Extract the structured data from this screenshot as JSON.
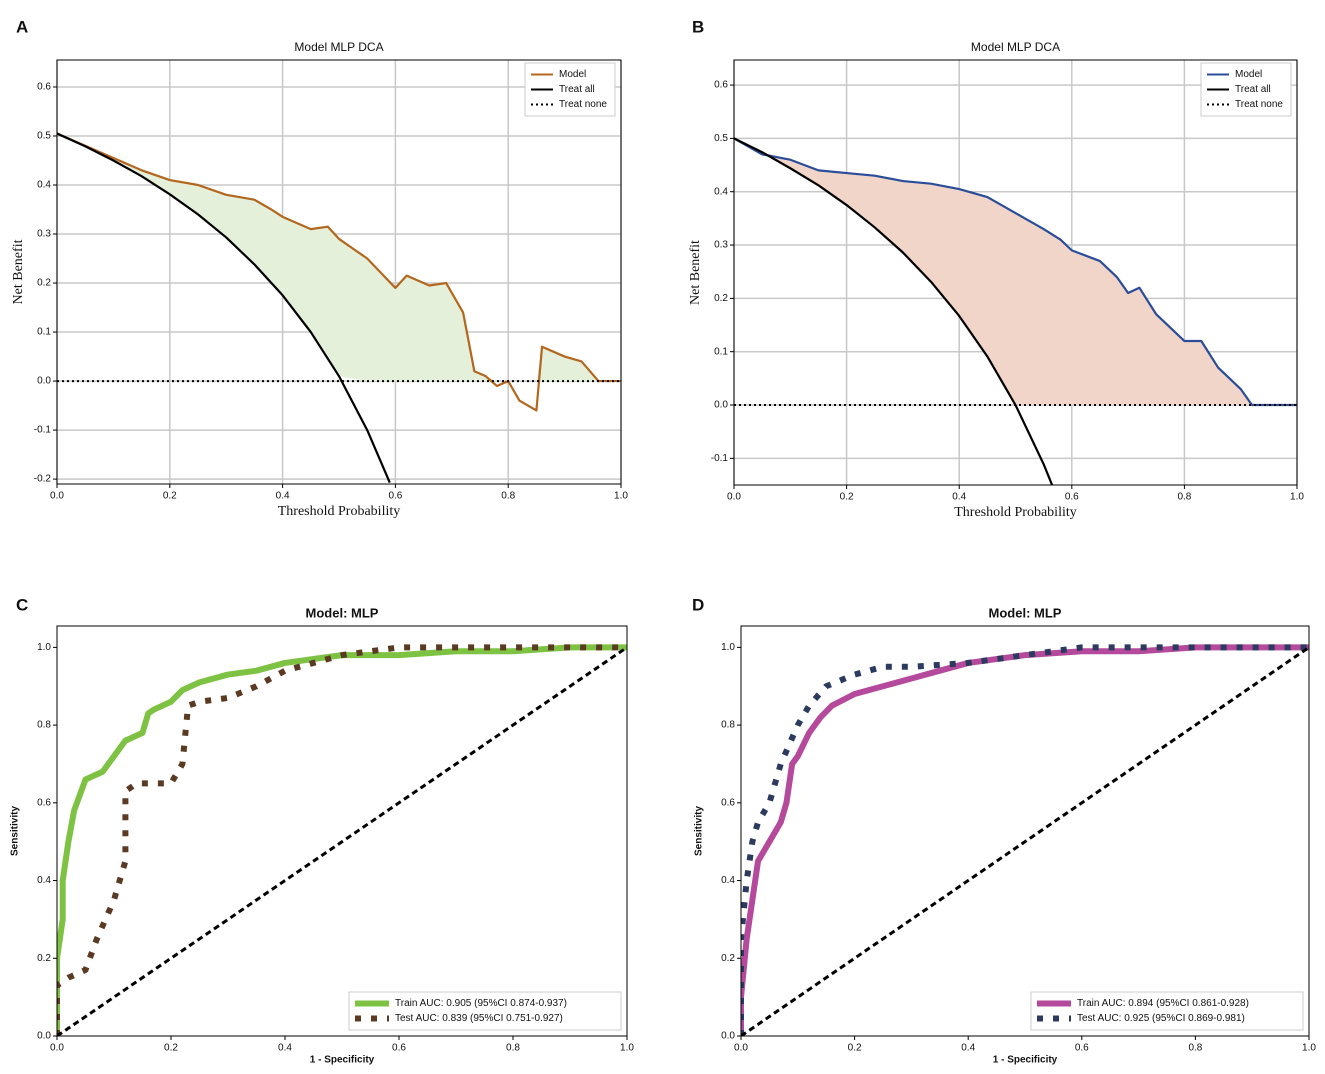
{
  "chart_data": [
    {
      "type": "line",
      "panel": "A",
      "title": "Model MLP DCA",
      "xlabel": "Threshold Probability",
      "ylabel": "Net Benefit",
      "xlim": [
        0,
        1
      ],
      "ylim": [
        -0.21,
        0.655
      ],
      "xticks": [
        {
          "value": 0,
          "label": "0.0"
        },
        0.2,
        0.4,
        0.6,
        0.8,
        {
          "value": 1,
          "label": "1.0"
        }
      ],
      "yticks": [
        -0.2,
        -0.1,
        {
          "value": 0,
          "label": "0.0"
        },
        0.1,
        0.2,
        0.3,
        0.4,
        0.5,
        0.6
      ],
      "grid": true,
      "legend": "upper right",
      "fill_color": "#e4f0da",
      "series": [
        {
          "name": "Model",
          "color": "#b3661e",
          "linestyle": "solid",
          "x": [
            0,
            0.05,
            0.1,
            0.15,
            0.2,
            0.25,
            0.3,
            0.35,
            0.38,
            0.4,
            0.45,
            0.48,
            0.5,
            0.55,
            0.6,
            0.62,
            0.66,
            0.69,
            0.72,
            0.74,
            0.76,
            0.78,
            0.8,
            0.82,
            0.85,
            0.86,
            0.9,
            0.93,
            0.96,
            1.0
          ],
          "values": [
            0.505,
            0.48,
            0.455,
            0.43,
            0.41,
            0.4,
            0.38,
            0.37,
            0.35,
            0.335,
            0.31,
            0.315,
            0.29,
            0.25,
            0.19,
            0.215,
            0.195,
            0.2,
            0.14,
            0.02,
            0.01,
            -0.01,
            0.0,
            -0.04,
            -0.06,
            0.07,
            0.05,
            0.04,
            0.0,
            0.0
          ]
        },
        {
          "name": "Treat all",
          "color": "#000000",
          "linestyle": "solid",
          "x": [
            0,
            0.05,
            0.1,
            0.15,
            0.2,
            0.25,
            0.3,
            0.35,
            0.4,
            0.45,
            0.5,
            0.55,
            0.59
          ],
          "values": [
            0.505,
            0.479,
            0.45,
            0.418,
            0.381,
            0.34,
            0.293,
            0.238,
            0.175,
            0.1,
            0.01,
            -0.1,
            -0.207
          ]
        },
        {
          "name": "Treat none",
          "color": "#000000",
          "linestyle": "dotted",
          "x": [
            0,
            1
          ],
          "values": [
            0,
            0
          ]
        }
      ]
    },
    {
      "type": "line",
      "panel": "B",
      "title": "Model MLP DCA",
      "xlabel": "Threshold Probability",
      "ylabel": "Net Benefit",
      "xlim": [
        0,
        1
      ],
      "ylim": [
        -0.15,
        0.647
      ],
      "xticks": [
        {
          "value": 0,
          "label": "0.0"
        },
        0.2,
        0.4,
        0.6,
        0.8,
        {
          "value": 1,
          "label": "1.0"
        }
      ],
      "yticks": [
        -0.1,
        {
          "value": 0,
          "label": "0.0"
        },
        0.1,
        0.2,
        0.3,
        0.4,
        0.5,
        0.6
      ],
      "grid": true,
      "legend": "upper right",
      "fill_color": "#f1d5c8",
      "series": [
        {
          "name": "Model",
          "color": "#2a4d9a",
          "linestyle": "solid",
          "x": [
            0,
            0.05,
            0.1,
            0.15,
            0.2,
            0.25,
            0.3,
            0.35,
            0.4,
            0.45,
            0.5,
            0.55,
            0.58,
            0.6,
            0.65,
            0.68,
            0.7,
            0.72,
            0.75,
            0.78,
            0.8,
            0.83,
            0.86,
            0.9,
            0.92,
            1.0
          ],
          "values": [
            0.5,
            0.47,
            0.46,
            0.44,
            0.435,
            0.43,
            0.42,
            0.415,
            0.405,
            0.39,
            0.36,
            0.33,
            0.31,
            0.29,
            0.27,
            0.24,
            0.21,
            0.22,
            0.17,
            0.14,
            0.12,
            0.12,
            0.07,
            0.03,
            0.0,
            0.0
          ]
        },
        {
          "name": "Treat all",
          "color": "#000000",
          "linestyle": "solid",
          "x": [
            0,
            0.05,
            0.1,
            0.15,
            0.2,
            0.25,
            0.3,
            0.35,
            0.4,
            0.45,
            0.5,
            0.55,
            0.57
          ],
          "values": [
            0.5,
            0.474,
            0.444,
            0.412,
            0.375,
            0.333,
            0.286,
            0.231,
            0.167,
            0.091,
            0,
            -0.111,
            -0.163
          ]
        },
        {
          "name": "Treat none",
          "color": "#000000",
          "linestyle": "dotted",
          "x": [
            0,
            1
          ],
          "values": [
            0,
            0
          ]
        }
      ]
    },
    {
      "type": "line",
      "panel": "C",
      "title": "Model: MLP",
      "xlabel": "1 - Specificity",
      "ylabel": "Sensitivity",
      "xlim": [
        0,
        1
      ],
      "ylim": [
        0,
        1.055
      ],
      "xticks": [
        {
          "value": 0,
          "label": "0.0"
        },
        0.2,
        0.4,
        0.6,
        0.8,
        {
          "value": 1,
          "label": "1.0"
        }
      ],
      "yticks": [
        {
          "value": 0,
          "label": "0.0"
        },
        0.2,
        0.4,
        0.6,
        0.8,
        {
          "value": 1,
          "label": "1.0"
        }
      ],
      "grid": false,
      "legend": "lower right",
      "series": [
        {
          "name": "Train AUC: 0.905 (95%CI 0.874-0.937)",
          "color": "#7dc242",
          "linestyle": "solid",
          "x": [
            0,
            0,
            0.01,
            0.01,
            0.02,
            0.03,
            0.04,
            0.05,
            0.08,
            0.1,
            0.12,
            0.15,
            0.16,
            0.17,
            0.2,
            0.22,
            0.25,
            0.3,
            0.35,
            0.4,
            0.45,
            0.5,
            0.6,
            0.7,
            0.8,
            0.9,
            1.0
          ],
          "values": [
            0,
            0.2,
            0.3,
            0.4,
            0.5,
            0.58,
            0.62,
            0.66,
            0.68,
            0.72,
            0.76,
            0.78,
            0.83,
            0.84,
            0.86,
            0.89,
            0.91,
            0.93,
            0.94,
            0.96,
            0.97,
            0.98,
            0.98,
            0.99,
            0.99,
            1.0,
            1.0
          ]
        },
        {
          "name": "Test AUC: 0.839 (95%CI 0.751-0.927)",
          "color": "#5b3a24",
          "linestyle": "dotted",
          "x": [
            0,
            0,
            0.02,
            0.05,
            0.07,
            0.1,
            0.12,
            0.12,
            0.14,
            0.2,
            0.22,
            0.23,
            0.25,
            0.3,
            0.35,
            0.4,
            0.45,
            0.5,
            0.6,
            1.0
          ],
          "values": [
            0,
            0.13,
            0.15,
            0.17,
            0.25,
            0.35,
            0.45,
            0.63,
            0.65,
            0.65,
            0.7,
            0.85,
            0.86,
            0.87,
            0.9,
            0.94,
            0.96,
            0.98,
            1.0,
            1.0
          ]
        },
        {
          "color": "#000000",
          "linestyle": "dashed",
          "x": [
            0,
            1
          ],
          "values": [
            0,
            1
          ]
        }
      ]
    },
    {
      "type": "line",
      "panel": "D",
      "title": "Model: MLP",
      "xlabel": "1 - Specificity",
      "ylabel": "Sensitivity",
      "xlim": [
        0,
        1
      ],
      "ylim": [
        0,
        1.055
      ],
      "xticks": [
        {
          "value": 0,
          "label": "0.0"
        },
        0.2,
        0.4,
        0.6,
        0.8,
        {
          "value": 1,
          "label": "1.0"
        }
      ],
      "yticks": [
        {
          "value": 0,
          "label": "0.0"
        },
        0.2,
        0.4,
        0.6,
        0.8,
        {
          "value": 1,
          "label": "1.0"
        }
      ],
      "grid": false,
      "legend": "lower right",
      "series": [
        {
          "name": "Train AUC: 0.894 (95%CI 0.861-0.928)",
          "color": "#b5499b",
          "linestyle": "solid",
          "x": [
            0,
            0,
            0.01,
            0.02,
            0.03,
            0.05,
            0.07,
            0.08,
            0.09,
            0.1,
            0.12,
            0.14,
            0.16,
            0.2,
            0.25,
            0.3,
            0.35,
            0.4,
            0.5,
            0.6,
            0.7,
            0.8,
            1.0
          ],
          "values": [
            0,
            0.1,
            0.25,
            0.35,
            0.45,
            0.5,
            0.55,
            0.6,
            0.7,
            0.72,
            0.78,
            0.82,
            0.85,
            0.88,
            0.9,
            0.92,
            0.94,
            0.96,
            0.98,
            0.99,
            0.99,
            1.0,
            1.0
          ]
        },
        {
          "name": "Test AUC: 0.925 (95%CI 0.869-0.981)",
          "color": "#2b3a5e",
          "linestyle": "dotted",
          "x": [
            0,
            0,
            0.01,
            0.02,
            0.03,
            0.05,
            0.07,
            0.1,
            0.12,
            0.15,
            0.2,
            0.25,
            0.3,
            0.4,
            0.5,
            0.6,
            1.0
          ],
          "values": [
            0,
            0.25,
            0.4,
            0.5,
            0.55,
            0.6,
            0.7,
            0.8,
            0.85,
            0.9,
            0.93,
            0.95,
            0.95,
            0.96,
            0.98,
            1.0,
            1.0
          ]
        },
        {
          "color": "#000000",
          "linestyle": "dashed",
          "x": [
            0,
            1
          ],
          "values": [
            0,
            1
          ]
        }
      ]
    }
  ]
}
